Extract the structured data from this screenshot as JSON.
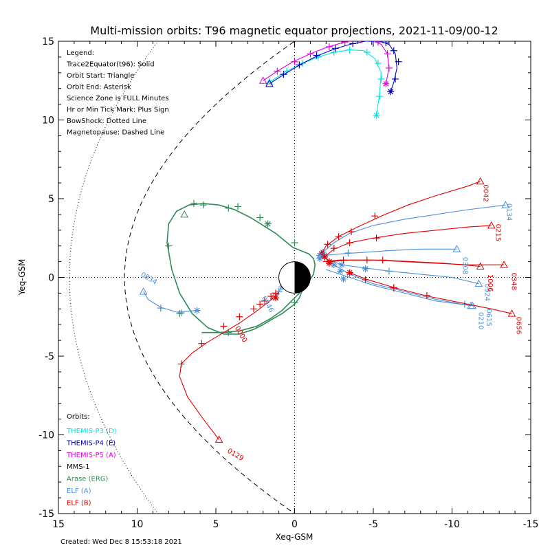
{
  "chart_data": {
    "type": "line",
    "title": "Multi-mission orbits: T96 magnetic equator projections, 2021-11-09/00-12",
    "xlabel": "Xeq-GSM",
    "ylabel": "Yeq-GSM",
    "xlim": [
      15,
      -15
    ],
    "ylim": [
      15,
      -15
    ],
    "grid": false,
    "x_ticks": [
      "15",
      "10",
      "5",
      "0",
      "-5",
      "-10",
      "-15"
    ],
    "y_ticks": [
      "-15",
      "-10",
      "-5",
      "0",
      "5",
      "10",
      "15"
    ],
    "legend_lines": [
      "Legend:",
      "Trace2Equator(t96): Solid",
      "Orbit Start: Triangle",
      "Orbit End: Asterisk",
      "Science Zone is FULL Minutes",
      "Hr or Min Tick Mark: Plus Sign",
      "BowShock: Dotted Line",
      "Magnetopause: Dashed Line"
    ],
    "orbits_heading": "Orbits:",
    "missions": [
      {
        "name": "THEMIS-P3 (D)",
        "color": "#00e5e5"
      },
      {
        "name": "THEMIS-P4 (E)",
        "color": "#0000c0"
      },
      {
        "name": "THEMIS-P5 (A)",
        "color": "#e000e0"
      },
      {
        "name": "MMS-1",
        "color": "#000000"
      },
      {
        "name": "Arase (ERG)",
        "color": "#2e8b57"
      },
      {
        "name": "ELF (A)",
        "color": "#4a90d9"
      },
      {
        "name": "ELF (B)",
        "color": "#e00000"
      }
    ],
    "created": "Created: Wed Dec  8 15:53:18 2021",
    "series": [
      {
        "name": "THEMIS-P3 (D)",
        "color": "#00e5e5",
        "x": [
          1.6,
          0.5,
          -0.5,
          -1.5,
          -2.5,
          -3.5,
          -4.4,
          -5.1,
          -5.5,
          -5.4,
          -5.2
        ],
        "y": [
          12.4,
          13.1,
          13.6,
          14.0,
          14.3,
          14.45,
          14.4,
          13.9,
          13.0,
          11.7,
          10.3
        ],
        "start": [
          1.6,
          12.4
        ],
        "end": [
          -5.2,
          10.3
        ],
        "ticks": [
          [
            0.5,
            13.1
          ],
          [
            -0.5,
            13.6
          ],
          [
            -1.5,
            14.0
          ],
          [
            -2.5,
            14.3
          ],
          [
            -3.5,
            14.45
          ],
          [
            -4.6,
            14.3
          ],
          [
            -5.3,
            13.6
          ],
          [
            -5.5,
            12.6
          ],
          [
            -5.4,
            11.5
          ]
        ]
      },
      {
        "name": "THEMIS-P4 (E)",
        "color": "#0000c0",
        "x": [
          1.6,
          0.5,
          -0.5,
          -1.5,
          -2.5,
          -3.5,
          -4.5,
          -5.4,
          -6.0,
          -6.4,
          -6.5,
          -6.3,
          -6.1
        ],
        "y": [
          12.3,
          13.0,
          13.6,
          14.1,
          14.5,
          14.8,
          15.0,
          15.0,
          14.8,
          14.2,
          13.3,
          12.4,
          11.8
        ],
        "start": [
          1.6,
          12.3
        ],
        "end": [
          -6.1,
          11.8
        ],
        "ticks": [
          [
            0.7,
            12.9
          ],
          [
            -0.3,
            13.5
          ],
          [
            -1.4,
            14.1
          ],
          [
            -2.6,
            14.55
          ],
          [
            -3.7,
            14.85
          ],
          [
            -4.9,
            15.0
          ],
          [
            -5.8,
            14.9
          ],
          [
            -6.3,
            14.4
          ],
          [
            -6.6,
            13.7
          ],
          [
            -6.4,
            12.6
          ]
        ]
      },
      {
        "name": "THEMIS-P5 (A)",
        "color": "#e000e0",
        "x": [
          2.0,
          1.1,
          0.1,
          -1.0,
          -2.0,
          -3.0,
          -4.0,
          -4.9,
          -5.5,
          -5.9,
          -6.0,
          -5.8
        ],
        "y": [
          12.5,
          13.1,
          13.7,
          14.2,
          14.6,
          14.9,
          15.1,
          15.1,
          14.8,
          14.2,
          13.3,
          12.3
        ],
        "start": [
          2.0,
          12.5
        ],
        "end": [
          -5.8,
          12.3
        ],
        "ticks": [
          [
            1.1,
            13.1
          ],
          [
            0.0,
            13.7
          ],
          [
            -1.0,
            14.2
          ],
          [
            -2.2,
            14.65
          ],
          [
            -3.2,
            14.95
          ],
          [
            -4.2,
            15.1
          ],
          [
            -5.3,
            14.95
          ],
          [
            -5.9,
            14.2
          ],
          [
            -6.0,
            13.3
          ]
        ]
      },
      {
        "name": "Arase (ERG)",
        "color": "#2e8b57",
        "x": [
          5.9,
          4.8,
          3.5,
          2.4,
          1.5,
          0.8,
          0.2,
          -0.3,
          -0.8,
          -1.2,
          -1.3,
          -1.2,
          -0.9,
          -0.4,
          0.1,
          0.6,
          1.2,
          2.0,
          2.8,
          3.8,
          4.8,
          5.8,
          6.7,
          7.5,
          8.0,
          8.1,
          7.8,
          7.3,
          6.5,
          5.5,
          4.5,
          3.5,
          2.6,
          2.0,
          1.5,
          0.8,
          0.0,
          -0.3,
          -0.5,
          -0.8
        ],
        "y": [
          -3.5,
          -3.5,
          -3.4,
          -3.1,
          -2.6,
          -2.1,
          -1.5,
          -1.0,
          -0.4,
          0.2,
          0.8,
          1.2,
          1.5,
          1.7,
          1.9,
          2.3,
          2.8,
          3.3,
          3.8,
          4.3,
          4.6,
          4.7,
          4.6,
          4.2,
          3.4,
          2.2,
          0.5,
          -1.0,
          -2.3,
          -3.2,
          -3.6,
          -3.6,
          -3.3,
          -3.0,
          -2.7,
          -2.3,
          -1.7,
          -1.3,
          -0.8,
          -0.2
        ],
        "start": [
          7.0,
          4.0
        ],
        "end": [
          1.7,
          3.4
        ],
        "ticks": [
          [
            7.3,
            -2.3
          ],
          [
            8.0,
            2.0
          ],
          [
            6.4,
            4.7
          ],
          [
            5.8,
            4.6
          ],
          [
            4.2,
            4.4
          ],
          [
            3.6,
            4.5
          ],
          [
            2.2,
            3.8
          ],
          [
            0.0,
            2.2
          ],
          [
            0.0,
            -1.6
          ],
          [
            4.2,
            -3.5
          ]
        ]
      },
      {
        "name": "ELF (A) 0834",
        "color": "#4a90d9",
        "x": [
          9.6,
          9.3,
          8.5,
          7.5,
          6.2
        ],
        "y": [
          -0.9,
          -1.4,
          -1.9,
          -2.2,
          -2.1
        ],
        "start": [
          9.6,
          -0.9
        ],
        "end": [
          6.2,
          -2.1
        ],
        "ticks": [
          [
            8.5,
            -1.95
          ],
          [
            7.2,
            -2.25
          ]
        ]
      },
      {
        "name": "ELF (A) 0946",
        "color": "#4a90d9",
        "x": [
          1.3,
          1.0,
          0.8
        ],
        "y": [
          -1.2,
          -0.9,
          -0.6
        ],
        "start": [
          1.3,
          -1.2
        ],
        "end": [
          0.8,
          -0.6
        ],
        "ticks": [
          [
            1.0,
            -0.9
          ]
        ]
      },
      {
        "name": "ELF (A) 0615",
        "color": "#4a90d9",
        "x": [
          -1.8,
          -2.5,
          -3.5,
          -5.0,
          -7.0,
          -9.0,
          -11.2
        ],
        "y": [
          1.4,
          0.8,
          0.2,
          -0.4,
          -0.9,
          -1.4,
          -1.8
        ],
        "start": [
          -11.2,
          -1.8
        ],
        "end": [
          -2.5,
          0.8
        ],
        "ticks": [
          [
            -3.5,
            0.2
          ],
          [
            -6.3,
            -0.7
          ],
          [
            -10.8,
            -1.7
          ]
        ]
      },
      {
        "name": "ELF (A) 0924",
        "color": "#4a90d9",
        "x": [
          -1.9,
          -3.0,
          -4.5,
          -6.0,
          -8.0,
          -10.0,
          -11.7
        ],
        "y": [
          1.2,
          0.8,
          0.6,
          0.4,
          0.2,
          0.0,
          -0.4
        ],
        "start": [
          -11.7,
          -0.4
        ],
        "end": [
          -3.0,
          0.8
        ],
        "ticks": [
          [
            -4.5,
            0.55
          ],
          [
            -6.0,
            0.4
          ]
        ]
      },
      {
        "name": "ELF (A) 0308",
        "color": "#4a90d9",
        "x": [
          -1.9,
          -3.0,
          -4.5,
          -6.0,
          -8.0,
          -10.3
        ],
        "y": [
          1.4,
          1.5,
          1.6,
          1.7,
          1.8,
          1.8
        ],
        "start": [
          -10.3,
          1.8
        ],
        "end": [
          -1.9,
          1.4
        ],
        "ticks": [
          [
            -3.4,
            1.55
          ]
        ]
      },
      {
        "name": "ELF (A) 0134",
        "color": "#4a90d9",
        "x": [
          -1.8,
          -2.5,
          -3.5,
          -5.0,
          -7.0,
          -9.0,
          -11.0,
          -13.4
        ],
        "y": [
          1.6,
          2.2,
          2.8,
          3.3,
          3.7,
          4.0,
          4.3,
          4.6
        ],
        "start": [
          -13.4,
          4.6
        ],
        "end": [
          -1.8,
          1.6
        ],
        "ticks": []
      },
      {
        "name": "ELF (A) 0210",
        "color": "#4a90d9",
        "x": [
          -2.0,
          -3.5,
          -5.0,
          -7.0,
          -9.0,
          -11.3
        ],
        "y": [
          0.5,
          0.0,
          -0.5,
          -1.0,
          -1.5,
          -1.8
        ],
        "start": [
          -11.3,
          -1.8
        ],
        "end": [
          -3.1,
          -0.1
        ],
        "ticks": []
      },
      {
        "name": "ELF (B) 0129",
        "color": "#e00000",
        "x": [
          4.8,
          5.8,
          6.8,
          7.3,
          7.2,
          6.5,
          5.5,
          4.5,
          3.5,
          2.5,
          1.7,
          1.0
        ],
        "y": [
          -10.3,
          -9.0,
          -7.6,
          -6.3,
          -5.5,
          -4.8,
          -4.1,
          -3.5,
          -2.9,
          -2.2,
          -1.6,
          -1.0
        ],
        "start": [
          4.8,
          -10.3
        ],
        "end": [
          1.2,
          -1.3
        ],
        "ticks": [
          [
            7.2,
            -5.5
          ],
          [
            5.9,
            -4.2
          ],
          [
            4.5,
            -3.1
          ],
          [
            3.5,
            -2.5
          ],
          [
            2.6,
            -2.0
          ],
          [
            2.2,
            -1.7
          ],
          [
            1.9,
            -1.5
          ],
          [
            1.5,
            -1.2
          ],
          [
            1.2,
            -1.0
          ]
        ]
      },
      {
        "name": "ELF (B) 0656",
        "color": "#e00000",
        "x": [
          -3.5,
          -4.5,
          -6.5,
          -8.5,
          -10.5,
          -12.5,
          -13.8
        ],
        "y": [
          0.3,
          -0.1,
          -0.7,
          -1.2,
          -1.6,
          -2.0,
          -2.3
        ],
        "start": [
          -13.8,
          -2.3
        ],
        "end": [
          -3.5,
          0.3
        ],
        "ticks": [
          [
            -4.5,
            -0.15
          ],
          [
            -6.3,
            -0.65
          ],
          [
            -8.4,
            -1.15
          ]
        ]
      },
      {
        "name": "ELF (B) 1006",
        "color": "#e00000",
        "x": [
          -1.8,
          -2.8,
          -4.0,
          -5.5,
          -7.5,
          -9.5,
          -11.8
        ],
        "y": [
          1.0,
          1.1,
          1.1,
          1.1,
          1.0,
          0.9,
          0.7
        ],
        "start": [
          -11.8,
          0.7
        ],
        "end": [
          -2.2,
          1.0
        ],
        "ticks": [
          [
            -3.1,
            1.1
          ],
          [
            -4.6,
            1.1
          ],
          [
            -5.6,
            1.1
          ]
        ]
      },
      {
        "name": "ELF (B) 0348",
        "color": "#e00000",
        "x": [
          -2.2,
          -3.5,
          -5.0,
          -7.0,
          -9.0,
          -11.0,
          -13.3
        ],
        "y": [
          1.0,
          1.1,
          1.1,
          1.0,
          0.9,
          0.8,
          0.8
        ],
        "start": [
          -13.3,
          0.8
        ],
        "end": [
          -2.2,
          1.0
        ],
        "ticks": []
      },
      {
        "name": "ELF (B) 0215",
        "color": "#e00000",
        "x": [
          -1.9,
          -2.5,
          -3.5,
          -5.0,
          -7.0,
          -9.0,
          -11.0,
          -12.5
        ],
        "y": [
          1.3,
          1.8,
          2.2,
          2.5,
          2.8,
          3.0,
          3.2,
          3.3
        ],
        "start": [
          -12.5,
          3.3
        ],
        "end": [
          -1.9,
          1.3
        ],
        "ticks": [
          [
            -2.5,
            1.85
          ],
          [
            -3.5,
            2.2
          ],
          [
            -5.2,
            2.5
          ]
        ]
      },
      {
        "name": "ELF (B) 0042",
        "color": "#e00000",
        "x": [
          -1.7,
          -2.0,
          -2.8,
          -4.0,
          -5.5,
          -7.2,
          -9.0,
          -11.0,
          -11.8
        ],
        "y": [
          1.5,
          2.0,
          2.6,
          3.2,
          3.9,
          4.6,
          5.2,
          5.8,
          6.1
        ],
        "start": [
          -11.8,
          6.1
        ],
        "end": [
          -1.7,
          1.5
        ],
        "ticks": [
          [
            -2.1,
            2.1
          ],
          [
            -2.8,
            2.6
          ],
          [
            -3.6,
            2.9
          ],
          [
            -5.1,
            3.9
          ]
        ]
      }
    ],
    "extra_asterisks": [
      {
        "color": "#4a90d9",
        "points": [
          [
            -2.9,
            0.4
          ],
          [
            -4.5,
            0.55
          ],
          [
            -1.6,
            1.2
          ],
          [
            -1.6,
            1.4
          ]
        ]
      },
      {
        "color": "#e00000",
        "points": [
          [
            -2.2,
            0.9
          ],
          [
            -1.9,
            1.3
          ]
        ]
      }
    ],
    "orbit_labels": [
      {
        "text": "0129",
        "x": 4.3,
        "y": -11.1,
        "color": "#e00000",
        "rotate": 30
      },
      {
        "text": "0000",
        "x": 3.8,
        "y": -3.2,
        "color": "#e00000",
        "rotate": 60
      },
      {
        "text": "0946",
        "x": 2.1,
        "y": -1.3,
        "color": "#4a90d9",
        "rotate": 60
      },
      {
        "text": "0834",
        "x": 9.8,
        "y": 0.1,
        "color": "#4a90d9",
        "rotate": 30
      },
      {
        "text": "0656",
        "x": -14.1,
        "y": -2.5,
        "color": "#e00000",
        "rotate": 90
      },
      {
        "text": "0210",
        "x": -11.7,
        "y": -2.2,
        "color": "#4a90d9",
        "rotate": 90
      },
      {
        "text": "0615",
        "x": -12.2,
        "y": -2.0,
        "color": "#4a90d9",
        "rotate": 90
      },
      {
        "text": "0924",
        "x": -12.1,
        "y": -0.4,
        "color": "#4a90d9",
        "rotate": 90
      },
      {
        "text": "1006",
        "x": -12.3,
        "y": 0.2,
        "color": "#e00000",
        "rotate": 90
      },
      {
        "text": "0348",
        "x": -13.8,
        "y": 0.3,
        "color": "#e00000",
        "rotate": 90
      },
      {
        "text": "0308",
        "x": -10.7,
        "y": 1.3,
        "color": "#4a90d9",
        "rotate": 90
      },
      {
        "text": "0215",
        "x": -12.8,
        "y": 3.4,
        "color": "#e00000",
        "rotate": 90
      },
      {
        "text": "0134",
        "x": -13.5,
        "y": 4.7,
        "color": "#4a90d9",
        "rotate": 90
      },
      {
        "text": "0042",
        "x": -12.0,
        "y": 5.9,
        "color": "#e00000",
        "rotate": 90
      }
    ],
    "magnetopause": {
      "x0": 10.8,
      "a": 0.048,
      "style": "dashed"
    },
    "bowshock": {
      "x0": 14.3,
      "a": 0.025,
      "style": "dotted"
    }
  }
}
